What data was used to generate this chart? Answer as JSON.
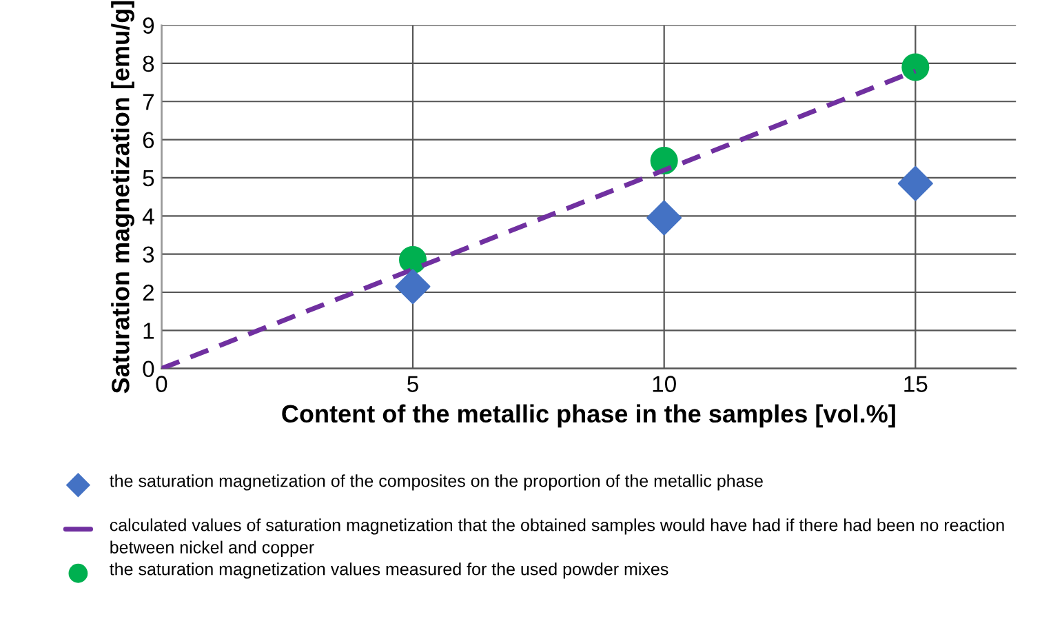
{
  "chart_data": {
    "type": "scatter",
    "xlabel": "Content of the metallic phase in the samples [vol.%]",
    "ylabel": "Saturation magnetization [emu/g]",
    "xlim": [
      0,
      17
    ],
    "xticks": [
      0,
      5,
      10,
      15
    ],
    "ylim": [
      0,
      9
    ],
    "yticks": [
      0,
      1,
      2,
      3,
      4,
      5,
      6,
      7,
      8,
      9
    ],
    "grid": true,
    "legend": "bottom",
    "series": [
      {
        "name": "the saturation magnetization of the composites on the proportion of the metallic phase",
        "marker": "diamond",
        "color": "#4472c4",
        "x": [
          5,
          10,
          15
        ],
        "values": [
          2.15,
          3.95,
          4.85
        ]
      },
      {
        "name": "calculated values of saturation magnetization that the obtained samples would have had if there had been no reaction between nickel and copper",
        "type": "line",
        "marker": "none",
        "line_style": "dashed",
        "color": "#7030a0",
        "x": [
          0,
          15
        ],
        "values": [
          0,
          7.8
        ]
      },
      {
        "name": "the saturation magnetization values measured for the used powder mixes",
        "marker": "circle",
        "color": "#00b050",
        "x": [
          5,
          10,
          15
        ],
        "values": [
          2.85,
          5.45,
          7.9
        ]
      }
    ]
  }
}
